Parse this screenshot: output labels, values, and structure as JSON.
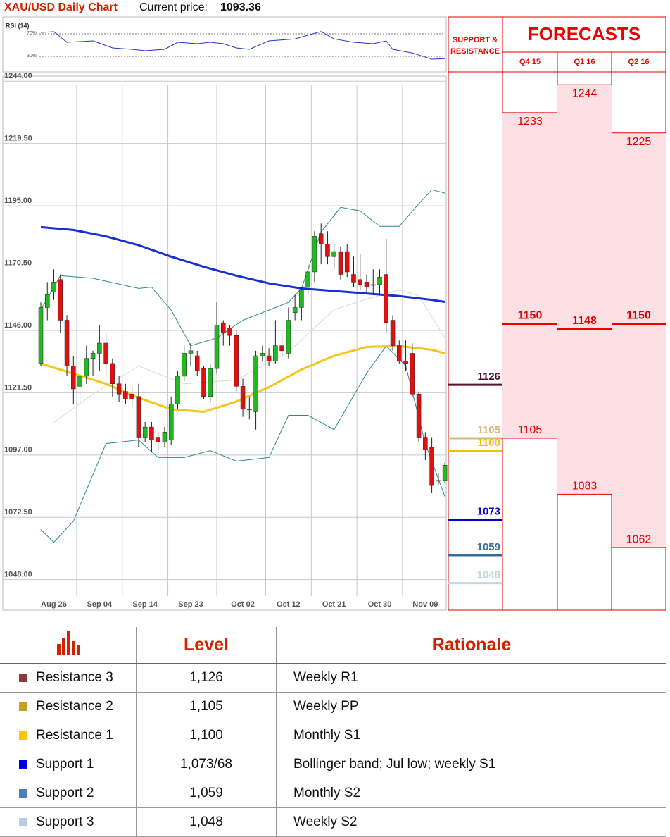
{
  "header": {
    "title": "XAU/USD Daily Chart",
    "price_label": "Current price:",
    "price": "1093.36"
  },
  "chart_data": [
    {
      "type": "candlestick",
      "categories": [
        null,
        null,
        "Aug 26",
        null,
        null,
        null,
        null,
        null,
        null,
        "Sep 04",
        null,
        null,
        null,
        null,
        null,
        null,
        "Sep 14",
        null,
        null,
        null,
        null,
        null,
        null,
        "Sep 23",
        null,
        null,
        null,
        null,
        null,
        null,
        null,
        "Oct 02",
        null,
        null,
        null,
        null,
        null,
        null,
        "Oct 12",
        null,
        null,
        null,
        null,
        null,
        null,
        "Oct 21",
        null,
        null,
        null,
        null,
        null,
        null,
        "Oct 30",
        null,
        null,
        null,
        null,
        null,
        null,
        "Nov 09",
        null,
        null,
        null
      ],
      "open": [
        1133,
        1155,
        1161,
        1166,
        1150,
        1132,
        1124,
        1128,
        1135,
        1137,
        1141,
        1133,
        1125,
        1122,
        1121,
        1120,
        1104,
        1108,
        1104,
        1102,
        1103,
        1117,
        1128,
        1137,
        1136,
        1131,
        1120,
        1131,
        1149,
        1147,
        1144,
        1124,
        1115,
        1114,
        1136,
        1136,
        1134,
        1140,
        1137,
        1153,
        1155,
        1163,
        1169,
        1184,
        1180,
        1175,
        1177,
        1177,
        1168,
        1166,
        1165,
        1164,
        1164,
        1168,
        1150,
        1140,
        1134,
        1137,
        1121,
        1104,
        1100,
        1087,
        1087
      ],
      "high": [
        1157,
        1165,
        1170,
        1168,
        1152,
        1136,
        1135,
        1140,
        1138,
        1148,
        1145,
        1135,
        1128,
        1125,
        1124,
        1125,
        1110,
        1110,
        1106,
        1108,
        1120,
        1130,
        1140,
        1141,
        1138,
        1132,
        1133,
        1157,
        1150,
        1148,
        1146,
        1127,
        1120,
        1138,
        1140,
        1139,
        1150,
        1145,
        1155,
        1160,
        1163,
        1172,
        1185,
        1188,
        1185,
        1180,
        1179,
        1180,
        1175,
        1176,
        1168,
        1170,
        1170,
        1182,
        1152,
        1142,
        1142,
        1141,
        1122,
        1106,
        1104,
        1090,
        1094
      ],
      "low": [
        1132,
        1150,
        1158,
        1145,
        1128,
        1117,
        1118,
        1125,
        1128,
        1130,
        1128,
        1120,
        1118,
        1117,
        1116,
        1100,
        1102,
        1098,
        1099,
        1100,
        1101,
        1115,
        1126,
        1132,
        1128,
        1119,
        1118,
        1129,
        1140,
        1140,
        1122,
        1112,
        1111,
        1107,
        1134,
        1132,
        1133,
        1136,
        1135,
        1150,
        1150,
        1160,
        1165,
        1172,
        1172,
        1170,
        1166,
        1167,
        1163,
        1162,
        1161,
        1160,
        1160,
        1145,
        1138,
        1133,
        1130,
        1120,
        1102,
        1095,
        1082,
        1085,
        1086
      ],
      "close": [
        1155,
        1160,
        1165,
        1150,
        1132,
        1123,
        1128,
        1135,
        1137,
        1141,
        1133,
        1125,
        1121,
        1119,
        1119,
        1104,
        1108,
        1103,
        1102,
        1106,
        1117,
        1128,
        1137,
        1138,
        1130,
        1120,
        1131,
        1148,
        1145,
        1144,
        1124,
        1115,
        1115,
        1136,
        1137,
        1134,
        1140,
        1138,
        1150,
        1155,
        1162,
        1169,
        1183,
        1180,
        1175,
        1177,
        1168,
        1169,
        1165,
        1164,
        1163,
        1164,
        1167,
        1149,
        1140,
        1134,
        1133,
        1121,
        1104,
        1099,
        1085,
        1087,
        1093
      ],
      "up_color": "#22b822",
      "down_color": "#e01010",
      "overlays": [
        {
          "color": "#d9d9d9",
          "width": 1,
          "x": [
            2,
            8,
            15,
            22,
            30,
            38,
            45,
            50,
            55,
            58,
            62
          ],
          "values": [
            1109.8,
            1120.9,
            1132,
            1125,
            1126.5,
            1137.5,
            1154.2,
            1158.3,
            1161.9,
            1159.7,
            1143
          ]
        },
        {
          "color": "#2a8a8a",
          "width": 1,
          "x": [
            0,
            3,
            8,
            15,
            17,
            20,
            23,
            27,
            31,
            35,
            38,
            40,
            43,
            46,
            49,
            52,
            55,
            58,
            60,
            62
          ],
          "values": [
            1154,
            1167.5,
            1166.5,
            1162.5,
            1163,
            1154,
            1140,
            1143,
            1150,
            1154,
            1157,
            1162.5,
            1184.7,
            1194.4,
            1193,
            1186.9,
            1186.9,
            1195.8,
            1201.3,
            1200
          ]
        },
        {
          "color": "#2a8a8a",
          "width": 1,
          "x": [
            0,
            2,
            5,
            10,
            15,
            18,
            22,
            26,
            30,
            35,
            38,
            41,
            45,
            50,
            53,
            56,
            59,
            62
          ],
          "values": [
            1067.7,
            1062.7,
            1071,
            1101.5,
            1102.9,
            1096,
            1096,
            1098.7,
            1094.6,
            1096,
            1112.6,
            1112.6,
            1107,
            1129.2,
            1139.8,
            1132,
            1101.5,
            1080.7
          ]
        },
        {
          "color": "#1a2fd0",
          "width": 3,
          "x": [
            0,
            5,
            10,
            15,
            20,
            25,
            30,
            35,
            40,
            45,
            50,
            55,
            60,
            62
          ],
          "values": [
            1186.6,
            1185.5,
            1183,
            1179.5,
            1175,
            1171,
            1167.5,
            1164.5,
            1162.5,
            1161.5,
            1160.5,
            1159.5,
            1158,
            1157.2
          ]
        },
        {
          "color": "#f5c518",
          "width": 3,
          "x": [
            0,
            10,
            15,
            20,
            25,
            30,
            35,
            40,
            45,
            50,
            55,
            60,
            62
          ],
          "values": [
            1133,
            1125,
            1119.5,
            1115,
            1114,
            1118,
            1123.7,
            1130.6,
            1136,
            1139.5,
            1139.8,
            1138.4,
            1137
          ]
        }
      ],
      "ylim": [
        1036,
        1246
      ],
      "yticks": [
        {
          "value": 1244,
          "label": "1244.00"
        },
        {
          "value": 1219.5,
          "label": "1219.50"
        },
        {
          "value": 1195,
          "label": "1195.00"
        },
        {
          "value": 1170.5,
          "label": "1170.50"
        },
        {
          "value": 1146,
          "label": "1146.00"
        },
        {
          "value": 1121.5,
          "label": "1121.50"
        },
        {
          "value": 1097,
          "label": "1097.00"
        },
        {
          "value": 1072.5,
          "label": "1072.50"
        },
        {
          "value": 1048,
          "label": "1048.00"
        }
      ],
      "grid": true
    },
    {
      "type": "line",
      "title": "RSI (14)",
      "color": "#2233cc",
      "x": [
        0,
        2,
        4,
        8,
        11,
        14,
        16,
        19,
        21,
        24,
        26,
        28,
        30,
        32,
        35,
        39,
        42,
        43,
        45,
        48,
        51,
        53,
        54,
        57,
        60,
        62
      ],
      "values": [
        72.5,
        73.8,
        55,
        57.5,
        45,
        42.5,
        40,
        42.5,
        55,
        52.5,
        55,
        52.5,
        45,
        42.5,
        57.5,
        61,
        71,
        74,
        61,
        55,
        52.5,
        57.5,
        42.5,
        36,
        25,
        26
      ],
      "xlim": [
        -1,
        63
      ],
      "ylim": [
        5,
        95
      ],
      "yticks": [
        {
          "value": 70,
          "label": "70%"
        },
        {
          "value": 30,
          "label": "30%"
        }
      ]
    }
  ],
  "support_resistance": {
    "title_lines": [
      "SUPPORT &",
      "RESISTANCE"
    ],
    "levels": [
      {
        "value": 1126,
        "color": "#5a0f2e"
      },
      {
        "value": 1105,
        "color": "#d9b77a"
      },
      {
        "value": 1100,
        "color": "#f2c200"
      },
      {
        "value": 1073,
        "color": "#0000cc"
      },
      {
        "value": 1059,
        "color": "#3a6e9a"
      },
      {
        "value": 1048,
        "color": "#c0d8e0"
      }
    ]
  },
  "forecasts": {
    "title": "FORECASTS",
    "quarters": [
      {
        "name": "Q4 15",
        "high": 1233,
        "average": 1150,
        "low": 1105
      },
      {
        "name": "Q1 16",
        "high": 1244,
        "average": 1148,
        "low": 1083
      },
      {
        "name": "Q2 16",
        "high": 1225,
        "average": 1150,
        "low": 1062
      }
    ]
  },
  "table": {
    "header": [
      "Level",
      "Rationale"
    ],
    "rows": [
      {
        "name": "Resistance 3",
        "color": "#8b3a3a",
        "level": "1,126",
        "rationale": "Weekly R1"
      },
      {
        "name": "Resistance 2",
        "color": "#c8a020",
        "level": "1,105",
        "rationale": "Weekly PP"
      },
      {
        "name": "Resistance 1",
        "color": "#f5c800",
        "level": "1,100",
        "rationale": "Monthly S1"
      },
      {
        "name": "Support 1",
        "color": "#0000e0",
        "level": "1,073/68",
        "rationale": "Bollinger band; Jul low; weekly S1"
      },
      {
        "name": "Support 2",
        "color": "#4a80b8",
        "level": "1,059",
        "rationale": "Monthly S2"
      },
      {
        "name": "Support 3",
        "color": "#b8cce8",
        "level": "1,048",
        "rationale": "Weekly S2"
      }
    ]
  }
}
